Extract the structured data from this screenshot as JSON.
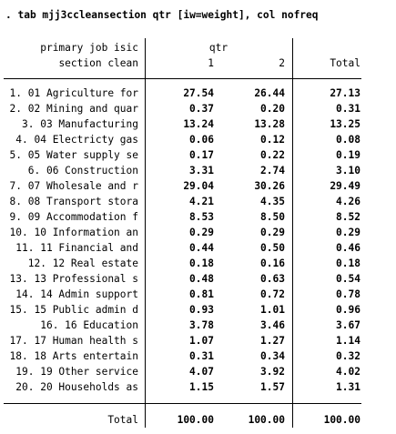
{
  "command": ". tab mjj3ccleansection qtr [iw=weight], col nofreq",
  "header": {
    "row_var_line1": "primary job isic",
    "row_var_line2": "section clean",
    "col_var": "qtr",
    "col1": "1",
    "col2": "2",
    "total": "Total"
  },
  "rows": [
    {
      "label": "1. 01 Agriculture for",
      "c1": "27.54",
      "c2": "26.44",
      "total": "27.13"
    },
    {
      "label": "2. 02 Mining and quar",
      "c1": "0.37",
      "c2": "0.20",
      "total": "0.31"
    },
    {
      "label": "3. 03 Manufacturing",
      "c1": "13.24",
      "c2": "13.28",
      "total": "13.25"
    },
    {
      "label": "4. 04 Electricty gas",
      "c1": "0.06",
      "c2": "0.12",
      "total": "0.08"
    },
    {
      "label": "5. 05 Water supply se",
      "c1": "0.17",
      "c2": "0.22",
      "total": "0.19"
    },
    {
      "label": "6. 06 Construction",
      "c1": "3.31",
      "c2": "2.74",
      "total": "3.10"
    },
    {
      "label": "7. 07 Wholesale and r",
      "c1": "29.04",
      "c2": "30.26",
      "total": "29.49"
    },
    {
      "label": "8. 08 Transport stora",
      "c1": "4.21",
      "c2": "4.35",
      "total": "4.26"
    },
    {
      "label": "9. 09 Accommodation f",
      "c1": "8.53",
      "c2": "8.50",
      "total": "8.52"
    },
    {
      "label": "10. 10 Information an",
      "c1": "0.29",
      "c2": "0.29",
      "total": "0.29"
    },
    {
      "label": "11. 11 Financial and",
      "c1": "0.44",
      "c2": "0.50",
      "total": "0.46"
    },
    {
      "label": "12. 12 Real estate",
      "c1": "0.18",
      "c2": "0.16",
      "total": "0.18"
    },
    {
      "label": "13. 13 Professional s",
      "c1": "0.48",
      "c2": "0.63",
      "total": "0.54"
    },
    {
      "label": "14. 14 Admin support",
      "c1": "0.81",
      "c2": "0.72",
      "total": "0.78"
    },
    {
      "label": "15. 15 Public admin d",
      "c1": "0.93",
      "c2": "1.01",
      "total": "0.96"
    },
    {
      "label": "16. 16 Education",
      "c1": "3.78",
      "c2": "3.46",
      "total": "3.67"
    },
    {
      "label": "17. 17 Human health s",
      "c1": "1.07",
      "c2": "1.27",
      "total": "1.14"
    },
    {
      "label": "18. 18 Arts entertain",
      "c1": "0.31",
      "c2": "0.34",
      "total": "0.32"
    },
    {
      "label": "19. 19 Other service",
      "c1": "4.07",
      "c2": "3.92",
      "total": "4.02"
    },
    {
      "label": "20. 20 Households as",
      "c1": "1.15",
      "c2": "1.57",
      "total": "1.31"
    }
  ],
  "total_row": {
    "label": "Total",
    "c1": "100.00",
    "c2": "100.00",
    "total": "100.00"
  }
}
